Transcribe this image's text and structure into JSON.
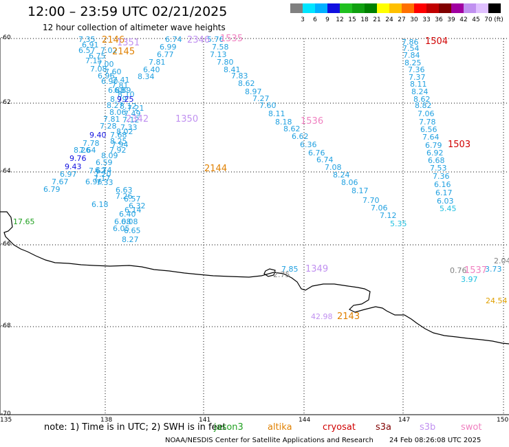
{
  "header": {
    "title": "12:00 – 23:59 UTC 02/21/2025",
    "subtitle": "12 hour collection of altimeter wave heights"
  },
  "colorbar": {
    "unit": "(ft)",
    "ticks": [
      "3",
      "6",
      "9",
      "12",
      "15",
      "18",
      "21",
      "24",
      "27",
      "30",
      "33",
      "36",
      "39",
      "42",
      "45",
      "70"
    ],
    "colors": [
      "#808080",
      "#00e5ff",
      "#00b0ff",
      "#1010e0",
      "#20c020",
      "#10a010",
      "#008000",
      "#ffff00",
      "#ffc000",
      "#ff7000",
      "#ff0000",
      "#c00000",
      "#800000",
      "#a000a0",
      "#c090f0",
      "#e0c0ff",
      "#000000"
    ]
  },
  "axes": {
    "lat_labels": [
      "-60",
      "-62",
      "-64",
      "-66",
      "-68",
      "-70"
    ],
    "lon_labels": [
      "135",
      "138",
      "141",
      "144",
      "147",
      "150"
    ]
  },
  "map_data": {
    "track_labels": [
      {
        "t": "7.35",
        "c": "#20a0e0"
      },
      {
        "t": "6.91",
        "c": "#20a0e0"
      },
      {
        "t": "6.57",
        "c": "#20a0e0"
      },
      {
        "t": "7.02",
        "c": "#20a0e0"
      },
      {
        "t": "6.75",
        "c": "#20a0e0"
      },
      {
        "t": "7.15",
        "c": "#20a0e0"
      },
      {
        "t": "7.00",
        "c": "#20a0e0"
      },
      {
        "t": "7.08",
        "c": "#20a0e0"
      },
      {
        "t": "7.60",
        "c": "#20a0e0"
      },
      {
        "t": "6.96",
        "c": "#20a0e0"
      },
      {
        "t": "7.41",
        "c": "#20a0e0"
      },
      {
        "t": "6.90",
        "c": "#20a0e0"
      },
      {
        "t": "7.81",
        "c": "#20a0e0"
      },
      {
        "t": "6.88",
        "c": "#20a0e0"
      },
      {
        "t": "6.89",
        "c": "#20a0e0"
      },
      {
        "t": "8.10",
        "c": "#20a0e0"
      },
      {
        "t": "8.79",
        "c": "#20a0e0"
      },
      {
        "t": "9.25",
        "c": "#1010e0"
      },
      {
        "t": "8.27",
        "c": "#20a0e0"
      },
      {
        "t": "8.12",
        "c": "#20a0e0"
      },
      {
        "t": "7.21",
        "c": "#20a0e0"
      },
      {
        "t": "8.06",
        "c": "#20a0e0"
      },
      {
        "t": "7.49",
        "c": "#20a0e0"
      },
      {
        "t": "7.81",
        "c": "#20a0e0"
      },
      {
        "t": "7.12",
        "c": "#20a0e0"
      },
      {
        "t": "7.28",
        "c": "#20a0e0"
      },
      {
        "t": "7.33",
        "c": "#20a0e0"
      },
      {
        "t": "8.02",
        "c": "#20a0e0"
      },
      {
        "t": "9.40",
        "c": "#1010e0"
      },
      {
        "t": "7.68",
        "c": "#20a0e0"
      },
      {
        "t": "7.78",
        "c": "#20a0e0"
      },
      {
        "t": "8.25",
        "c": "#20a0e0"
      },
      {
        "t": "7.64",
        "c": "#20a0e0"
      },
      {
        "t": "7.94",
        "c": "#20a0e0"
      },
      {
        "t": "8.26",
        "c": "#20a0e0"
      },
      {
        "t": "7.92",
        "c": "#20a0e0"
      },
      {
        "t": "9.76",
        "c": "#1010e0"
      },
      {
        "t": "8.09",
        "c": "#20a0e0"
      },
      {
        "t": "6.59",
        "c": "#20a0e0"
      },
      {
        "t": "9.43",
        "c": "#1010e0"
      },
      {
        "t": "6.74",
        "c": "#20a0e0"
      },
      {
        "t": "7.62",
        "c": "#20a0e0"
      },
      {
        "t": "6.97",
        "c": "#20a0e0"
      },
      {
        "t": "7.20",
        "c": "#20a0e0"
      },
      {
        "t": "7.17",
        "c": "#20a0e0"
      },
      {
        "t": "7.67",
        "c": "#20a0e0"
      },
      {
        "t": "6.96",
        "c": "#20a0e0"
      },
      {
        "t": "7.33",
        "c": "#20a0e0"
      },
      {
        "t": "6.63",
        "c": "#20a0e0"
      },
      {
        "t": "6.79",
        "c": "#20a0e0"
      },
      {
        "t": "7.26",
        "c": "#20a0e0"
      },
      {
        "t": "6.57",
        "c": "#20a0e0"
      },
      {
        "t": "6.18",
        "c": "#20a0e0"
      },
      {
        "t": "6.32",
        "c": "#20a0e0"
      },
      {
        "t": "6.14",
        "c": "#20a0e0"
      },
      {
        "t": "6.40",
        "c": "#20a0e0"
      },
      {
        "t": "6.08",
        "c": "#20a0e0"
      },
      {
        "t": "6.08",
        "c": "#20a0e0"
      },
      {
        "t": "6.05",
        "c": "#20a0e0"
      },
      {
        "t": "6.65",
        "c": "#20a0e0"
      },
      {
        "t": "8.27",
        "c": "#20a0e0"
      },
      {
        "t": "6.74",
        "c": "#20a0e0"
      },
      {
        "t": "6.99",
        "c": "#20a0e0"
      },
      {
        "t": "6.77",
        "c": "#20a0e0"
      },
      {
        "t": "7.81",
        "c": "#20a0e0"
      },
      {
        "t": "6.40",
        "c": "#20a0e0"
      },
      {
        "t": "8.34",
        "c": "#20a0e0"
      },
      {
        "t": "5.76",
        "c": "#20a0e0"
      },
      {
        "t": "7.58",
        "c": "#20a0e0"
      },
      {
        "t": "7.13",
        "c": "#20a0e0"
      },
      {
        "t": "7.80",
        "c": "#20a0e0"
      },
      {
        "t": "8.41",
        "c": "#20a0e0"
      },
      {
        "t": "7.83",
        "c": "#20a0e0"
      },
      {
        "t": "8.62",
        "c": "#20a0e0"
      },
      {
        "t": "8.97",
        "c": "#20a0e0"
      },
      {
        "t": "7.27",
        "c": "#20a0e0"
      },
      {
        "t": "7.60",
        "c": "#20a0e0"
      },
      {
        "t": "8.11",
        "c": "#20a0e0"
      },
      {
        "t": "8.18",
        "c": "#20a0e0"
      },
      {
        "t": "8.62",
        "c": "#20a0e0"
      },
      {
        "t": "6.62",
        "c": "#20a0e0"
      },
      {
        "t": "6.36",
        "c": "#20a0e0"
      },
      {
        "t": "6.76",
        "c": "#20a0e0"
      },
      {
        "t": "6.74",
        "c": "#20a0e0"
      },
      {
        "t": "7.08",
        "c": "#20a0e0"
      },
      {
        "t": "8.24",
        "c": "#20a0e0"
      },
      {
        "t": "8.06",
        "c": "#20a0e0"
      },
      {
        "t": "8.17",
        "c": "#20a0e0"
      },
      {
        "t": "7.70",
        "c": "#20a0e0"
      },
      {
        "t": "7.06",
        "c": "#20a0e0"
      },
      {
        "t": "7.12",
        "c": "#20a0e0"
      },
      {
        "t": "5.35",
        "c": "#20c0e0"
      },
      {
        "t": "7.86",
        "c": "#20a0e0"
      },
      {
        "t": "7.54",
        "c": "#20a0e0"
      },
      {
        "t": "7.84",
        "c": "#20a0e0"
      },
      {
        "t": "8.25",
        "c": "#20a0e0"
      },
      {
        "t": "7.36",
        "c": "#20a0e0"
      },
      {
        "t": "7.37",
        "c": "#20a0e0"
      },
      {
        "t": "8.11",
        "c": "#20a0e0"
      },
      {
        "t": "8.24",
        "c": "#20a0e0"
      },
      {
        "t": "8.62",
        "c": "#20a0e0"
      },
      {
        "t": "8.82",
        "c": "#20a0e0"
      },
      {
        "t": "7.06",
        "c": "#20a0e0"
      },
      {
        "t": "7.78",
        "c": "#20a0e0"
      },
      {
        "t": "6.56",
        "c": "#20a0e0"
      },
      {
        "t": "7.64",
        "c": "#20a0e0"
      },
      {
        "t": "6.79",
        "c": "#20a0e0"
      },
      {
        "t": "6.92",
        "c": "#20a0e0"
      },
      {
        "t": "6.68",
        "c": "#20a0e0"
      },
      {
        "t": "7.53",
        "c": "#20a0e0"
      },
      {
        "t": "7.36",
        "c": "#20a0e0"
      },
      {
        "t": "6.16",
        "c": "#20a0e0"
      },
      {
        "t": "6.17",
        "c": "#20a0e0"
      },
      {
        "t": "6.03",
        "c": "#20a0e0"
      },
      {
        "t": "5.45",
        "c": "#20c0e0"
      },
      {
        "t": "17.65",
        "c": "#20a020"
      },
      {
        "t": "2.75",
        "c": "#808080"
      },
      {
        "t": "7.85",
        "c": "#20a0e0"
      },
      {
        "t": "42.98",
        "c": "#c090f0"
      },
      {
        "t": "0.76",
        "c": "#808080"
      },
      {
        "t": "3.97",
        "c": "#20c0e0"
      },
      {
        "t": "3.73",
        "c": "#20a0e0"
      },
      {
        "t": "2.04",
        "c": "#808080"
      },
      {
        "t": "24.54",
        "c": "#e0a000"
      }
    ],
    "pass_labels": [
      {
        "t": "2146",
        "c": "#e08000"
      },
      {
        "t": "1351",
        "c": "#c090f0"
      },
      {
        "t": "2145",
        "c": "#e08000"
      },
      {
        "t": "2346",
        "c": "#c090f0"
      },
      {
        "t": "1535",
        "c": "#f080c0"
      },
      {
        "t": "1504",
        "c": "#d00000"
      },
      {
        "t": "2342",
        "c": "#c090f0"
      },
      {
        "t": "1350",
        "c": "#c090f0"
      },
      {
        "t": "1536",
        "c": "#f080c0"
      },
      {
        "t": "1503",
        "c": "#d00000"
      },
      {
        "t": "2144",
        "c": "#e08000"
      },
      {
        "t": "1349",
        "c": "#c090f0"
      },
      {
        "t": "1537",
        "c": "#f080c0"
      },
      {
        "t": "2143",
        "c": "#e08000"
      }
    ]
  },
  "footer": {
    "note": "note: 1) Time is in UTC; 2) SWH is in feet",
    "satellites": [
      {
        "name": "jason3",
        "color": "#20a020"
      },
      {
        "name": "altika",
        "color": "#e08000"
      },
      {
        "name": "cryosat",
        "color": "#d00000"
      },
      {
        "name": "s3a",
        "color": "#800000"
      },
      {
        "name": "s3b",
        "color": "#c090f0"
      },
      {
        "name": "swot",
        "color": "#f080c0"
      }
    ],
    "credit": "NOAA/NESDIS Center for Satellite Applications and Research",
    "timestamp": "24 Feb 08:26:08 UTC 2025"
  }
}
